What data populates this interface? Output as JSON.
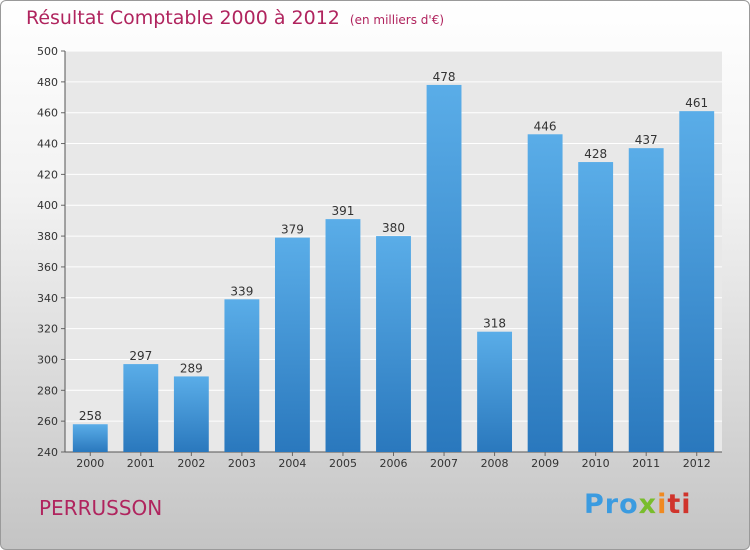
{
  "title": {
    "main": "Résultat Comptable 2000 à 2012",
    "sub": "(en milliers d'€)"
  },
  "commune": "PERRUSSON",
  "logo": {
    "text": "Proxiti",
    "parts": [
      "Pro",
      "x",
      "i",
      "ti"
    ]
  },
  "colors": {
    "bar_top": "#5aade8",
    "bar_bottom": "#2a78bd",
    "title": "#b0245e",
    "grid": "#ffffff"
  },
  "chart_data": {
    "type": "bar",
    "categories": [
      "2000",
      "2001",
      "2002",
      "2003",
      "2004",
      "2005",
      "2006",
      "2007",
      "2008",
      "2009",
      "2010",
      "2011",
      "2012"
    ],
    "values": [
      258,
      297,
      289,
      339,
      379,
      391,
      380,
      478,
      318,
      446,
      428,
      437,
      461
    ],
    "data_labels": [
      "258",
      "297",
      "289",
      "339",
      "379",
      "391",
      "380",
      "478",
      "318",
      "446",
      "428",
      "437",
      "461"
    ],
    "ylim": [
      240,
      500
    ],
    "yticks": [
      240,
      260,
      280,
      300,
      320,
      340,
      360,
      380,
      400,
      420,
      440,
      460,
      480,
      500
    ],
    "grid": true,
    "legend": "none"
  }
}
